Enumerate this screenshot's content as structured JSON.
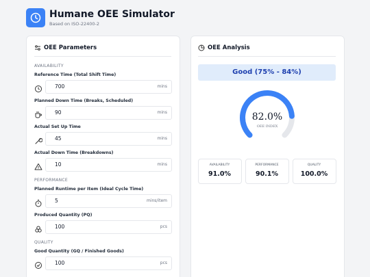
{
  "header": {
    "title": "Humane OEE Simulator",
    "subtitle": "Based on ISO-22400-2"
  },
  "parameters": {
    "title": "OEE Parameters",
    "sections": [
      {
        "label": "AVAILABILITY",
        "fields": [
          {
            "label": "Reference Time (Total Shift Time)",
            "value": "700",
            "unit": "mins"
          },
          {
            "label": "Planned Down Time (Breaks, Scheduled)",
            "value": "90",
            "unit": "mins"
          },
          {
            "label": "Actual Set Up Time",
            "value": "45",
            "unit": "mins"
          },
          {
            "label": "Actual Down Time (Breakdowns)",
            "value": "10",
            "unit": "mins"
          }
        ]
      },
      {
        "label": "PERFORMANCE",
        "fields": [
          {
            "label": "Planned Runtime per Item (Ideal Cycle Time)",
            "value": "5",
            "unit": "mins/item"
          },
          {
            "label": "Produced Quantity (PQ)",
            "value": "100",
            "unit": "pcs"
          }
        ]
      },
      {
        "label": "QUALITY",
        "fields": [
          {
            "label": "Good Quantity (GQ / Finished Goods)",
            "value": "100",
            "unit": "pcs"
          }
        ]
      }
    ]
  },
  "analysis": {
    "title": "OEE Analysis",
    "status": "Good (75% - 84%)",
    "gauge": {
      "value": 82,
      "label": "82.0%",
      "caption": "OEE INDEX"
    },
    "metrics": [
      {
        "label": "AVAILABILITY",
        "value": "91.0%"
      },
      {
        "label": "PERFORMANCE",
        "value": "90.1%"
      },
      {
        "label": "QUALITY",
        "value": "100.0%"
      }
    ]
  }
}
